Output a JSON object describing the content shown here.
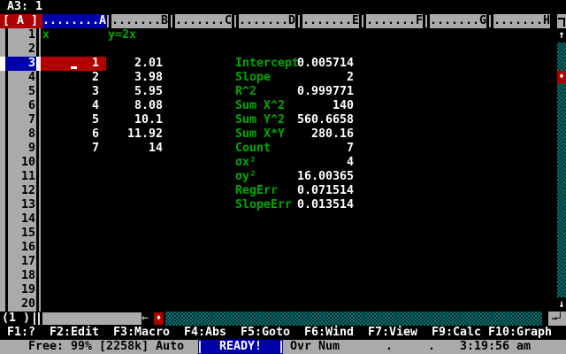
{
  "palette": {
    "black": "#000000",
    "gray": "#aaaaaa",
    "blue": "#0000aa",
    "red": "#b00000",
    "green": "#00aa00",
    "white": "#ffffff",
    "teal": "#0e6e6e",
    "teal_dark": "#043030"
  },
  "top_line": {
    "cell_ref": "A3: 1"
  },
  "frame": {
    "corner_label": "[ A ]",
    "page_indicator": "(1 )",
    "up_arrow": "↑",
    "down_arrow": "↓",
    "left_arrow": "←",
    "thumb_glyph": "♦",
    "scroll_corner_bottom": "→┘",
    "columns": [
      {
        "letter": "A",
        "dots": 8,
        "selected": true
      },
      {
        "letter": "B",
        "dots": 7
      },
      {
        "letter": "C",
        "dots": 7
      },
      {
        "letter": "D",
        "dots": 7
      },
      {
        "letter": "E",
        "dots": 7
      },
      {
        "letter": "F",
        "dots": 7
      },
      {
        "letter": "G",
        "dots": 7
      },
      {
        "letter": "H",
        "dots": 7
      }
    ],
    "rows": [
      "1",
      "2",
      "3",
      "4",
      "5",
      "6",
      "7",
      "8",
      "9",
      "10",
      "11",
      "12",
      "13",
      "14",
      "15",
      "16",
      "17",
      "18",
      "19",
      "20"
    ],
    "selected_row": "3"
  },
  "sheet": {
    "cells": [
      {
        "r": 1,
        "c": "A",
        "text": "x",
        "color": "green",
        "align": "left"
      },
      {
        "r": 1,
        "c": "B",
        "text": "y=2x",
        "color": "green",
        "align": "left"
      },
      {
        "r": 3,
        "c": "A",
        "text": "1",
        "color": "white",
        "align": "right",
        "selected": true
      },
      {
        "r": 4,
        "c": "A",
        "text": "2",
        "color": "white",
        "align": "right"
      },
      {
        "r": 5,
        "c": "A",
        "text": "3",
        "color": "white",
        "align": "right"
      },
      {
        "r": 6,
        "c": "A",
        "text": "4",
        "color": "white",
        "align": "right"
      },
      {
        "r": 7,
        "c": "A",
        "text": "5",
        "color": "white",
        "align": "right"
      },
      {
        "r": 8,
        "c": "A",
        "text": "6",
        "color": "white",
        "align": "right"
      },
      {
        "r": 9,
        "c": "A",
        "text": "7",
        "color": "white",
        "align": "right"
      },
      {
        "r": 3,
        "c": "B",
        "text": "2.01",
        "color": "white",
        "align": "right"
      },
      {
        "r": 4,
        "c": "B",
        "text": "3.98",
        "color": "white",
        "align": "right"
      },
      {
        "r": 5,
        "c": "B",
        "text": "5.95",
        "color": "white",
        "align": "right"
      },
      {
        "r": 6,
        "c": "B",
        "text": "8.08",
        "color": "white",
        "align": "right"
      },
      {
        "r": 7,
        "c": "B",
        "text": "10.1",
        "color": "white",
        "align": "right"
      },
      {
        "r": 8,
        "c": "B",
        "text": "11.92",
        "color": "white",
        "align": "right"
      },
      {
        "r": 9,
        "c": "B",
        "text": "14",
        "color": "white",
        "align": "right"
      },
      {
        "r": 3,
        "c": "D",
        "text": "Intercept",
        "color": "green",
        "align": "left"
      },
      {
        "r": 4,
        "c": "D",
        "text": "Slope",
        "color": "green",
        "align": "left"
      },
      {
        "r": 5,
        "c": "D",
        "text": "R^2",
        "color": "green",
        "align": "left"
      },
      {
        "r": 6,
        "c": "D",
        "text": "Sum X^2",
        "color": "green",
        "align": "left"
      },
      {
        "r": 7,
        "c": "D",
        "text": "Sum Y^2",
        "color": "green",
        "align": "left"
      },
      {
        "r": 8,
        "c": "D",
        "text": "Sum X*Y",
        "color": "green",
        "align": "left"
      },
      {
        "r": 9,
        "c": "D",
        "text": "Count",
        "color": "green",
        "align": "left"
      },
      {
        "r": 10,
        "c": "D",
        "text": "σx²",
        "color": "green",
        "align": "left"
      },
      {
        "r": 11,
        "c": "D",
        "text": "σy²",
        "color": "green",
        "align": "left"
      },
      {
        "r": 12,
        "c": "D",
        "text": "RegErr",
        "color": "green",
        "align": "left"
      },
      {
        "r": 13,
        "c": "D",
        "text": "SlopeErr",
        "color": "green",
        "align": "left"
      },
      {
        "r": 3,
        "c": "E",
        "text": "0.005714",
        "color": "white",
        "align": "right"
      },
      {
        "r": 4,
        "c": "E",
        "text": "2",
        "color": "white",
        "align": "right"
      },
      {
        "r": 5,
        "c": "E",
        "text": "0.999771",
        "color": "white",
        "align": "right"
      },
      {
        "r": 6,
        "c": "E",
        "text": "140",
        "color": "white",
        "align": "right"
      },
      {
        "r": 7,
        "c": "E",
        "text": "560.6658",
        "color": "white",
        "align": "right"
      },
      {
        "r": 8,
        "c": "E",
        "text": "280.16",
        "color": "white",
        "align": "right"
      },
      {
        "r": 9,
        "c": "E",
        "text": "7",
        "color": "white",
        "align": "right"
      },
      {
        "r": 10,
        "c": "E",
        "text": "4",
        "color": "white",
        "align": "right"
      },
      {
        "r": 11,
        "c": "E",
        "text": "16.00365",
        "color": "white",
        "align": "right"
      },
      {
        "r": 12,
        "c": "E",
        "text": "0.071514",
        "color": "white",
        "align": "right"
      },
      {
        "r": 13,
        "c": "E",
        "text": "0.013514",
        "color": "white",
        "align": "right"
      }
    ]
  },
  "function_keys": [
    "F1:?",
    "F2:Edit",
    "F3:Macro",
    "F4:Abs",
    "F5:Goto",
    "F6:Wind",
    "F7:View",
    "F9:Calc",
    "F10:Graph"
  ],
  "status_bar": {
    "free": "Free: 99% [2258k] Auto",
    "mode": "READY!",
    "overwrite": "Ovr",
    "numlock": "Num",
    "dot1": ".",
    "dot2": ".",
    "clock": "3:19:56 am"
  }
}
